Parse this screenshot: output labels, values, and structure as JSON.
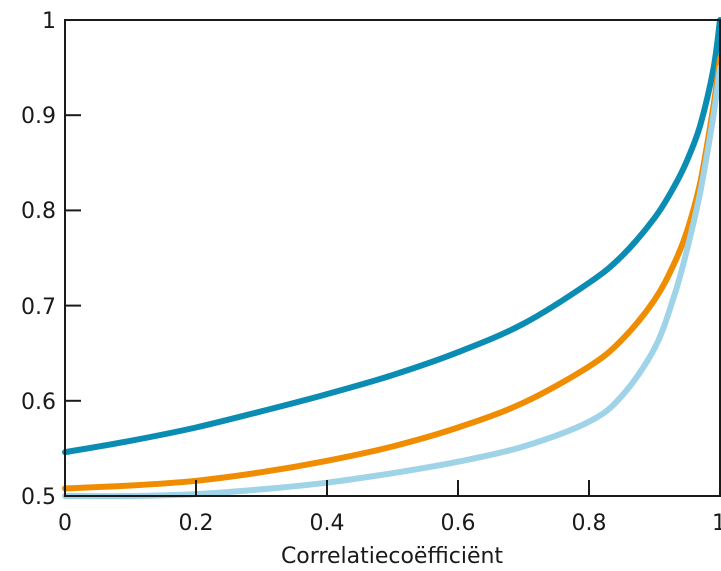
{
  "chart_data": {
    "type": "line",
    "title": "",
    "xlabel": "Correlatiecoëfficiënt",
    "ylabel": "",
    "xlim": [
      0,
      1
    ],
    "ylim": [
      0.5,
      1
    ],
    "x_ticks": [
      "0",
      "0.2",
      "0.4",
      "0.6",
      "0.8",
      "1"
    ],
    "y_ticks": [
      "0.5",
      "0.6",
      "0.7",
      "0.8",
      "0.9",
      "1"
    ],
    "grid": false,
    "legend": "none",
    "series": [
      {
        "color": "#0b8db3",
        "x": [
          0,
          0.1,
          0.2,
          0.3,
          0.4,
          0.5,
          0.6,
          0.7,
          0.8,
          0.85,
          0.9,
          0.93,
          0.95,
          0.97,
          0.99,
          1.0
        ],
        "y": [
          0.546,
          0.558,
          0.572,
          0.589,
          0.607,
          0.627,
          0.651,
          0.681,
          0.724,
          0.752,
          0.792,
          0.825,
          0.853,
          0.89,
          0.949,
          1.0
        ]
      },
      {
        "color": "#f08c00",
        "x": [
          0,
          0.1,
          0.2,
          0.3,
          0.4,
          0.5,
          0.6,
          0.7,
          0.8,
          0.85,
          0.9,
          0.93,
          0.95,
          0.97,
          0.99,
          1.0
        ],
        "y": [
          0.508,
          0.511,
          0.516,
          0.525,
          0.537,
          0.552,
          0.572,
          0.598,
          0.636,
          0.664,
          0.706,
          0.744,
          0.779,
          0.83,
          0.91,
          0.96
        ]
      },
      {
        "color": "#9fd3e8",
        "x": [
          0,
          0.1,
          0.2,
          0.3,
          0.4,
          0.5,
          0.6,
          0.7,
          0.8,
          0.85,
          0.9,
          0.93,
          0.95,
          0.97,
          0.99,
          1.0
        ],
        "y": [
          0.5,
          0.5,
          0.502,
          0.507,
          0.514,
          0.524,
          0.536,
          0.552,
          0.578,
          0.605,
          0.655,
          0.71,
          0.76,
          0.82,
          0.9,
          0.95
        ]
      }
    ]
  }
}
